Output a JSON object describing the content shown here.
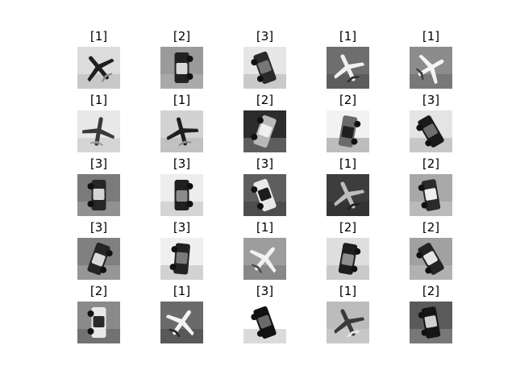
{
  "grid": {
    "rows": 5,
    "cols": 5,
    "labels": [
      "[1]",
      "[2]",
      "[3]",
      "[1]",
      "[1]",
      "[1]",
      "[1]",
      "[2]",
      "[2]",
      "[3]",
      "[3]",
      "[3]",
      "[3]",
      "[1]",
      "[2]",
      "[3]",
      "[3]",
      "[1]",
      "[2]",
      "[2]",
      "[2]",
      "[1]",
      "[3]",
      "[1]",
      "[2]"
    ],
    "images": [
      {
        "kind": "plane",
        "bg": "#dcdcdc",
        "obj": "#1e1e1e",
        "accent": "#8a8a8a"
      },
      {
        "kind": "vehicle",
        "bg": "#9a9a9a",
        "obj": "#222222",
        "accent": "#d8d8d8"
      },
      {
        "kind": "vehicle",
        "bg": "#e6e6e6",
        "obj": "#2a2a2a",
        "accent": "#777777"
      },
      {
        "kind": "plane",
        "bg": "#6e6e6e",
        "obj": "#f0f0f0",
        "accent": "#2a2a2a"
      },
      {
        "kind": "plane",
        "bg": "#8c8c8c",
        "obj": "#f4f4f4",
        "accent": "#3a3a3a"
      },
      {
        "kind": "plane",
        "bg": "#e8e8e8",
        "obj": "#3a3a3a",
        "accent": "#9c9c9c"
      },
      {
        "kind": "plane",
        "bg": "#d2d2d2",
        "obj": "#1f1f1f",
        "accent": "#8e8e8e"
      },
      {
        "kind": "vehicle",
        "bg": "#2c2c2c",
        "obj": "#b8b8b8",
        "accent": "#f0f0f0"
      },
      {
        "kind": "vehicle",
        "bg": "#f2f2f2",
        "obj": "#6a6a6a",
        "accent": "#1f1f1f"
      },
      {
        "kind": "vehicle",
        "bg": "#e4e4e4",
        "obj": "#1a1a1a",
        "accent": "#6f6f6f"
      },
      {
        "kind": "vehicle",
        "bg": "#7b7b7b",
        "obj": "#262626",
        "accent": "#d4d4d4"
      },
      {
        "kind": "vehicle",
        "bg": "#ededed",
        "obj": "#1f1f1f",
        "accent": "#8b8b8b"
      },
      {
        "kind": "vehicle",
        "bg": "#5e5e5e",
        "obj": "#e9e9e9",
        "accent": "#1c1c1c"
      },
      {
        "kind": "plane",
        "bg": "#3d3d3d",
        "obj": "#bdbdbd",
        "accent": "#1b1b1b"
      },
      {
        "kind": "vehicle",
        "bg": "#a8a8a8",
        "obj": "#2a2a2a",
        "accent": "#efefef"
      },
      {
        "kind": "vehicle",
        "bg": "#808080",
        "obj": "#252525",
        "accent": "#d9d9d9"
      },
      {
        "kind": "vehicle",
        "bg": "#efefef",
        "obj": "#222222",
        "accent": "#7a7a7a"
      },
      {
        "kind": "plane",
        "bg": "#9d9d9d",
        "obj": "#f2f2f2",
        "accent": "#4a4a4a"
      },
      {
        "kind": "vehicle",
        "bg": "#dedede",
        "obj": "#1e1e1e",
        "accent": "#8e8e8e"
      },
      {
        "kind": "vehicle",
        "bg": "#a1a1a1",
        "obj": "#232323",
        "accent": "#e4e4e4"
      },
      {
        "kind": "vehicle",
        "bg": "#8a8a8a",
        "obj": "#e8e8e8",
        "accent": "#2a2a2a"
      },
      {
        "kind": "plane",
        "bg": "#6a6a6a",
        "obj": "#f2f2f2",
        "accent": "#222222"
      },
      {
        "kind": "vehicle",
        "bg": "#ffffff",
        "obj": "#111111",
        "accent": "#6a6a6a"
      },
      {
        "kind": "plane",
        "bg": "#bcbcbc",
        "obj": "#3a3a3a",
        "accent": "#ededed"
      },
      {
        "kind": "vehicle",
        "bg": "#5a5a5a",
        "obj": "#151515",
        "accent": "#cfcfcf"
      }
    ]
  }
}
